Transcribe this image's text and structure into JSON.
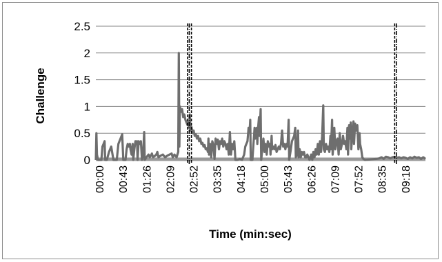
{
  "chart_data": {
    "type": "line",
    "title": "",
    "xlabel": "Time (min:sec)",
    "ylabel": "Challenge",
    "ylim": [
      0,
      2.5
    ],
    "yticks": [
      "0",
      "0.5",
      "1",
      "1.5",
      "2",
      "2.5"
    ],
    "xlim_seconds": [
      0,
      600
    ],
    "xticks": [
      "00:00",
      "00:43",
      "01:26",
      "02:09",
      "02:52",
      "03:35",
      "04:18",
      "05:00",
      "05:43",
      "06:26",
      "07:09",
      "07:52",
      "08:35",
      "09:18"
    ],
    "grid": "horizontal",
    "legend": "none",
    "series_color": "#6e6e6e",
    "baseline_color": "#9a9a9a",
    "markers": [
      {
        "t": 167,
        "style": "dashed"
      },
      {
        "t": 170,
        "style": "dash-dot"
      },
      {
        "t": 174,
        "style": "dashed"
      },
      {
        "t": 544,
        "style": "dashed"
      },
      {
        "t": 547,
        "style": "dash-dot"
      }
    ],
    "series": [
      {
        "points": [
          [
            0,
            0
          ],
          [
            1,
            0.5
          ],
          [
            2,
            0.1
          ],
          [
            4,
            0
          ],
          [
            10,
            0
          ],
          [
            12,
            0.25
          ],
          [
            14,
            0.3
          ],
          [
            16,
            0.35
          ],
          [
            17,
            0
          ],
          [
            20,
            0
          ],
          [
            24,
            0.15
          ],
          [
            28,
            0.25
          ],
          [
            32,
            0
          ],
          [
            38,
            0
          ],
          [
            41,
            0.3
          ],
          [
            45,
            0.4
          ],
          [
            48,
            0.48
          ],
          [
            50,
            0
          ],
          [
            54,
            0
          ],
          [
            56,
            0.2
          ],
          [
            58,
            0.3
          ],
          [
            60,
            0.25
          ],
          [
            62,
            0.3
          ],
          [
            63,
            0.2
          ],
          [
            65,
            0.1
          ],
          [
            67,
            0.3
          ],
          [
            68,
            0
          ],
          [
            70,
            0.2
          ],
          [
            72,
            0.35
          ],
          [
            73,
            0.3
          ],
          [
            75,
            0.35
          ],
          [
            76,
            0
          ],
          [
            78,
            0.35
          ],
          [
            80,
            0.3
          ],
          [
            82,
            0.35
          ],
          [
            84,
            0
          ],
          [
            86,
            0.1
          ],
          [
            88,
            0.52
          ],
          [
            89,
            0
          ],
          [
            92,
            0.05
          ],
          [
            96,
            0.1
          ],
          [
            98,
            0.05
          ],
          [
            100,
            0.08
          ],
          [
            102,
            0.12
          ],
          [
            104,
            0.05
          ],
          [
            108,
            0.08
          ],
          [
            110,
            0.1
          ],
          [
            112,
            0.15
          ],
          [
            114,
            0.05
          ],
          [
            118,
            0.08
          ],
          [
            122,
            0.1
          ],
          [
            126,
            0.05
          ],
          [
            130,
            0.08
          ],
          [
            134,
            0.1
          ],
          [
            138,
            0.12
          ],
          [
            140,
            0.05
          ],
          [
            143,
            0.1
          ],
          [
            147,
            0.05
          ],
          [
            150,
            0.15
          ],
          [
            151,
            2.0
          ],
          [
            152,
            0.25
          ],
          [
            153,
            1.0
          ],
          [
            155,
            0.9
          ],
          [
            157,
            0.95
          ],
          [
            159,
            0.8
          ],
          [
            161,
            0.85
          ],
          [
            163,
            0.75
          ],
          [
            165,
            0.7
          ],
          [
            167,
            0.65
          ],
          [
            168,
            0.7
          ],
          [
            170,
            0.6
          ],
          [
            171,
            0.85
          ],
          [
            172,
            0.55
          ],
          [
            174,
            0.62
          ],
          [
            176,
            0.5
          ],
          [
            178,
            0.55
          ],
          [
            180,
            0.45
          ],
          [
            182,
            0.48
          ],
          [
            184,
            0.4
          ],
          [
            186,
            0.45
          ],
          [
            188,
            0.35
          ],
          [
            190,
            0.4
          ],
          [
            192,
            0.3
          ],
          [
            194,
            0.32
          ],
          [
            196,
            0.25
          ],
          [
            198,
            0.28
          ],
          [
            200,
            0.2
          ],
          [
            202,
            0.22
          ],
          [
            204,
            0.15
          ],
          [
            205,
            0.4
          ],
          [
            206,
            0.1
          ],
          [
            208,
            0.3
          ],
          [
            210,
            0.05
          ],
          [
            212,
            0.35
          ],
          [
            214,
            0.28
          ],
          [
            216,
            0.02
          ],
          [
            218,
            0.4
          ],
          [
            220,
            0.3
          ],
          [
            222,
            0.38
          ],
          [
            224,
            0.2
          ],
          [
            226,
            0.35
          ],
          [
            228,
            0.3
          ],
          [
            230,
            0.4
          ],
          [
            232,
            0.25
          ],
          [
            234,
            0.35
          ],
          [
            236,
            0.3
          ],
          [
            238,
            0.2
          ],
          [
            240,
            0.3
          ],
          [
            242,
            0.1
          ],
          [
            244,
            0.52
          ],
          [
            246,
            0.1
          ],
          [
            248,
            0.3
          ],
          [
            250,
            0.2
          ],
          [
            252,
            0.35
          ],
          [
            254,
            0
          ],
          [
            258,
            0
          ],
          [
            262,
            0.02
          ],
          [
            266,
            0
          ],
          [
            270,
            0.1
          ],
          [
            272,
            0.25
          ],
          [
            274,
            0.3
          ],
          [
            276,
            0.35
          ],
          [
            278,
            0.6
          ],
          [
            280,
            0.55
          ],
          [
            281,
            0.75
          ],
          [
            282,
            0
          ],
          [
            285,
            0
          ],
          [
            287,
            0.3
          ],
          [
            289,
            0.6
          ],
          [
            290,
            0.4
          ],
          [
            292,
            0.55
          ],
          [
            293,
            0.6
          ],
          [
            294,
            0.3
          ],
          [
            295,
            0.55
          ],
          [
            297,
            0.8
          ],
          [
            298,
            0.45
          ],
          [
            300,
            0.95
          ],
          [
            301,
            0
          ],
          [
            303,
            0.2
          ],
          [
            305,
            0.4
          ],
          [
            307,
            0.15
          ],
          [
            309,
            0.3
          ],
          [
            311,
            0.1
          ],
          [
            313,
            0.35
          ],
          [
            315,
            0.25
          ],
          [
            317,
            0.3
          ],
          [
            318,
            0.1
          ],
          [
            320,
            0.45
          ],
          [
            321,
            0.2
          ],
          [
            323,
            0.25
          ],
          [
            325,
            0.2
          ],
          [
            327,
            0.28
          ],
          [
            329,
            0.15
          ],
          [
            331,
            0.2
          ],
          [
            333,
            0.25
          ],
          [
            335,
            0.2
          ],
          [
            337,
            0.3
          ],
          [
            339,
            0.55
          ],
          [
            341,
            0.25
          ],
          [
            343,
            0.3
          ],
          [
            345,
            0.2
          ],
          [
            347,
            0.3
          ],
          [
            349,
            0.25
          ],
          [
            350,
            0.5
          ],
          [
            351,
            0.75
          ],
          [
            352,
            0
          ],
          [
            355,
            0.2
          ],
          [
            357,
            0.35
          ],
          [
            359,
            0.4
          ],
          [
            361,
            0.45
          ],
          [
            363,
            0.6
          ],
          [
            364,
            0.05
          ],
          [
            366,
            0.1
          ],
          [
            368,
            0.55
          ],
          [
            369,
            0.05
          ],
          [
            371,
            0.2
          ],
          [
            373,
            0.05
          ],
          [
            375,
            0.15
          ],
          [
            377,
            0.1
          ],
          [
            379,
            0.15
          ],
          [
            381,
            0.05
          ],
          [
            383,
            0.05
          ],
          [
            385,
            0.1
          ],
          [
            387,
            0.05
          ],
          [
            389,
            0
          ],
          [
            392,
            0.1
          ],
          [
            394,
            0
          ],
          [
            396,
            0.15
          ],
          [
            398,
            0.05
          ],
          [
            400,
            0.2
          ],
          [
            402,
            0.1
          ],
          [
            404,
            0.3
          ],
          [
            406,
            0.1
          ],
          [
            408,
            0.35
          ],
          [
            410,
            0.15
          ],
          [
            412,
            0.45
          ],
          [
            414,
            1.02
          ],
          [
            415,
            0.2
          ],
          [
            417,
            0.15
          ],
          [
            419,
            0.3
          ],
          [
            421,
            0.2
          ],
          [
            423,
            0.25
          ],
          [
            425,
            0.15
          ],
          [
            427,
            0.45
          ],
          [
            428,
            0.2
          ],
          [
            430,
            0.75
          ],
          [
            431,
            0.1
          ],
          [
            433,
            0.35
          ],
          [
            434,
            0.6
          ],
          [
            436,
            0.2
          ],
          [
            438,
            0.35
          ],
          [
            440,
            0.4
          ],
          [
            442,
            0.1
          ],
          [
            444,
            0.5
          ],
          [
            446,
            0.2
          ],
          [
            448,
            0.3
          ],
          [
            450,
            0.45
          ],
          [
            452,
            0.3
          ],
          [
            454,
            0.35
          ],
          [
            456,
            0.2
          ],
          [
            458,
            0.6
          ],
          [
            459,
            0.1
          ],
          [
            461,
            0.65
          ],
          [
            462,
            0.4
          ],
          [
            464,
            0.7
          ],
          [
            465,
            0.2
          ],
          [
            467,
            0.5
          ],
          [
            469,
            0.72
          ],
          [
            470,
            0.3
          ],
          [
            472,
            0.68
          ],
          [
            474,
            0.55
          ],
          [
            476,
            0.65
          ],
          [
            478,
            0.2
          ],
          [
            480,
            0.5
          ],
          [
            481,
            0.3
          ],
          [
            483,
            0.2
          ],
          [
            485,
            0.05
          ],
          [
            487,
            0.02
          ],
          [
            490,
            0
          ],
          [
            500,
            0.01
          ],
          [
            510,
            0.02
          ],
          [
            516,
            0.03
          ],
          [
            520,
            0.05
          ],
          [
            524,
            0.02
          ],
          [
            528,
            0.06
          ],
          [
            532,
            0.05
          ],
          [
            536,
            0.03
          ],
          [
            540,
            0.05
          ],
          [
            544,
            0.06
          ],
          [
            548,
            0.04
          ],
          [
            552,
            0.05
          ],
          [
            556,
            0.03
          ],
          [
            560,
            0.05
          ],
          [
            564,
            0.04
          ],
          [
            568,
            0.02
          ],
          [
            572,
            0.05
          ],
          [
            576,
            0.03
          ],
          [
            580,
            0.06
          ],
          [
            584,
            0.04
          ],
          [
            588,
            0.05
          ],
          [
            592,
            0.02
          ],
          [
            596,
            0.05
          ],
          [
            600,
            0.02
          ]
        ]
      }
    ]
  }
}
